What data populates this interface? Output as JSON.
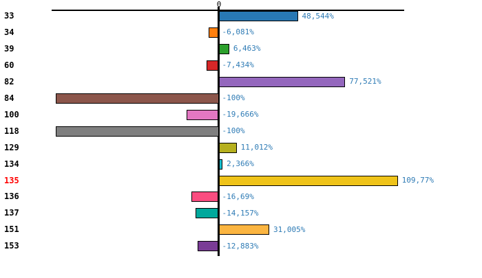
{
  "chart_data": {
    "type": "bar",
    "orientation": "horizontal",
    "title": "",
    "xlabel": "",
    "ylabel": "",
    "zero_label": "0",
    "value_suffix": "%",
    "axis_range": [
      -102.5,
      113.5
    ],
    "grid": false,
    "legend": false,
    "decimal_separator": ",",
    "value_text_color": "#2e7bb5",
    "category_text_color": "#000000",
    "highlight_color": "#ff0000",
    "axis_color": "#000000",
    "categories": [
      "33",
      "34",
      "39",
      "60",
      "82",
      "84",
      "100",
      "118",
      "129",
      "134",
      "135",
      "136",
      "137",
      "151",
      "153"
    ],
    "values": [
      48.544,
      -6.081,
      6.463,
      -7.434,
      77.521,
      -100,
      -19.666,
      -100,
      11.012,
      2.366,
      109.77,
      -16.69,
      -14.157,
      31.005,
      -12.883
    ],
    "rows": [
      {
        "category": "33",
        "value": 48.544,
        "label": "48,544%",
        "color": "#2878b4",
        "highlighted": false
      },
      {
        "category": "34",
        "value": -6.081,
        "label": "-6,081%",
        "color": "#ff7f0e",
        "highlighted": false
      },
      {
        "category": "39",
        "value": 6.463,
        "label": "6,463%",
        "color": "#2ca02c",
        "highlighted": false
      },
      {
        "category": "60",
        "value": -7.434,
        "label": "-7,434%",
        "color": "#d62728",
        "highlighted": false
      },
      {
        "category": "82",
        "value": 77.521,
        "label": "77,521%",
        "color": "#9467bd",
        "highlighted": false
      },
      {
        "category": "84",
        "value": -100,
        "label": "-100%",
        "color": "#8c564b",
        "highlighted": false
      },
      {
        "category": "100",
        "value": -19.666,
        "label": "-19,666%",
        "color": "#e377c2",
        "highlighted": false
      },
      {
        "category": "118",
        "value": -100,
        "label": "-100%",
        "color": "#7f7f7f",
        "highlighted": false
      },
      {
        "category": "129",
        "value": 11.012,
        "label": "11,012%",
        "color": "#b6b01e",
        "highlighted": false
      },
      {
        "category": "134",
        "value": 2.366,
        "label": "2,366%",
        "color": "#17becf",
        "highlighted": false
      },
      {
        "category": "135",
        "value": 109.77,
        "label": "109,77%",
        "color": "#efc319",
        "highlighted": true
      },
      {
        "category": "136",
        "value": -16.69,
        "label": "-16,69%",
        "color": "#fb4d80",
        "highlighted": false
      },
      {
        "category": "137",
        "value": -14.157,
        "label": "-14,157%",
        "color": "#00a89c",
        "highlighted": false
      },
      {
        "category": "151",
        "value": 31.005,
        "label": "31,005%",
        "color": "#fbb541",
        "highlighted": false
      },
      {
        "category": "153",
        "value": -12.883,
        "label": "-12,883%",
        "color": "#7a3c96",
        "highlighted": false
      }
    ]
  }
}
